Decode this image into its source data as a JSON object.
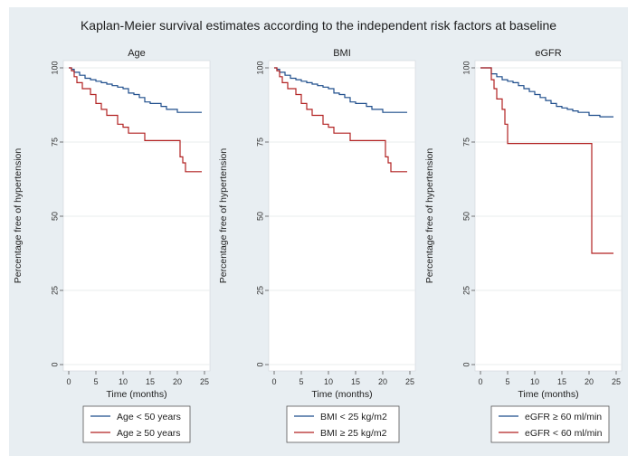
{
  "title": "Kaplan-Meier survival estimates according to the independent risk factors at baseline",
  "colors": {
    "background": "#e8eef2",
    "series_1": "#1f4e8c",
    "series_2": "#b22222"
  },
  "chart_data": [
    {
      "type": "line",
      "title": "Age",
      "xlabel": "Time (months)",
      "ylabel": "Percentage free of hypertension",
      "xlim": [
        0,
        25
      ],
      "ylim": [
        0,
        100
      ],
      "xticks": [
        "0",
        "5",
        "10",
        "15",
        "20",
        "25"
      ],
      "yticks": [
        "0",
        "25",
        "50",
        "75",
        "100"
      ],
      "grid": true,
      "legend_position": "bottom",
      "series": [
        {
          "name": "Age < 50 years",
          "x": [
            0,
            0.5,
            1,
            2,
            3,
            4,
            5,
            6,
            7,
            8,
            9,
            10,
            11,
            12,
            13,
            14,
            15,
            16,
            17,
            18,
            20,
            24.5
          ],
          "y": [
            100,
            99.5,
            98.5,
            97.5,
            96.5,
            96,
            95.5,
            95,
            94.5,
            94,
            93.5,
            93,
            91.5,
            91,
            90,
            88.5,
            88,
            88,
            87,
            86,
            85,
            85
          ]
        },
        {
          "name": "Age ≥ 50 years",
          "x": [
            0,
            0.5,
            1,
            1.5,
            2.5,
            4,
            5,
            6,
            7,
            8,
            9,
            10,
            11,
            14,
            20.5,
            21,
            21.5,
            24.5
          ],
          "y": [
            100,
            99,
            97,
            95,
            93,
            91,
            88,
            86,
            84,
            84,
            81,
            80,
            78,
            75.5,
            70,
            68,
            65,
            65
          ]
        }
      ]
    },
    {
      "type": "line",
      "title": "BMI",
      "xlabel": "Time (months)",
      "ylabel": "Percentage free of hypertension",
      "xlim": [
        0,
        25
      ],
      "ylim": [
        0,
        100
      ],
      "xticks": [
        "0",
        "5",
        "10",
        "15",
        "20",
        "25"
      ],
      "yticks": [
        "0",
        "25",
        "50",
        "75",
        "100"
      ],
      "grid": true,
      "legend_position": "bottom",
      "series": [
        {
          "name": "BMI < 25 kg/m2",
          "x": [
            0,
            0.5,
            1,
            2,
            3,
            4,
            5,
            6,
            7,
            8,
            9,
            10,
            11,
            12,
            13,
            14,
            15,
            16,
            17,
            18,
            20,
            24.5
          ],
          "y": [
            100,
            99.5,
            98.5,
            97.5,
            96.5,
            96,
            95.5,
            95,
            94.5,
            94,
            93.5,
            93,
            91.5,
            91,
            90,
            88.5,
            88,
            88,
            87,
            86,
            85,
            85
          ]
        },
        {
          "name": "BMI ≥ 25 kg/m2",
          "x": [
            0,
            0.5,
            1,
            1.5,
            2.5,
            4,
            5,
            6,
            7,
            8,
            9,
            10,
            11,
            14,
            20.5,
            21,
            21.5,
            24.5
          ],
          "y": [
            100,
            99,
            97,
            95,
            93,
            91,
            88,
            86,
            84,
            84,
            81,
            80,
            78,
            75.5,
            70,
            68,
            65,
            65
          ]
        }
      ]
    },
    {
      "type": "line",
      "title": "eGFR",
      "xlabel": "Time (months)",
      "ylabel": "Percentage free of hypertension",
      "xlim": [
        0,
        25
      ],
      "ylim": [
        0,
        100
      ],
      "xticks": [
        "0",
        "5",
        "10",
        "15",
        "20",
        "25"
      ],
      "yticks": [
        "0",
        "25",
        "50",
        "75",
        "100"
      ],
      "grid": true,
      "legend_position": "bottom",
      "series": [
        {
          "name": "eGFR ≥ 60 ml/min",
          "x": [
            0,
            1.5,
            2,
            3,
            4,
            5,
            6,
            7,
            8,
            9,
            10,
            11,
            12,
            13,
            14,
            15,
            16,
            17,
            18,
            20,
            22,
            24.5
          ],
          "y": [
            100,
            100,
            98,
            97,
            96,
            95.5,
            95,
            94,
            93,
            92,
            91,
            90,
            89,
            88,
            87,
            86.5,
            86,
            85.5,
            85,
            84,
            83.5,
            83.5
          ]
        },
        {
          "name": "eGFR < 60 ml/min",
          "x": [
            0,
            1.5,
            2,
            2.5,
            3,
            4,
            4.5,
            5,
            20.5,
            24.5
          ],
          "y": [
            100,
            100,
            96,
            93,
            89.5,
            86,
            81,
            74.5,
            37.5,
            37.5
          ]
        }
      ]
    }
  ]
}
